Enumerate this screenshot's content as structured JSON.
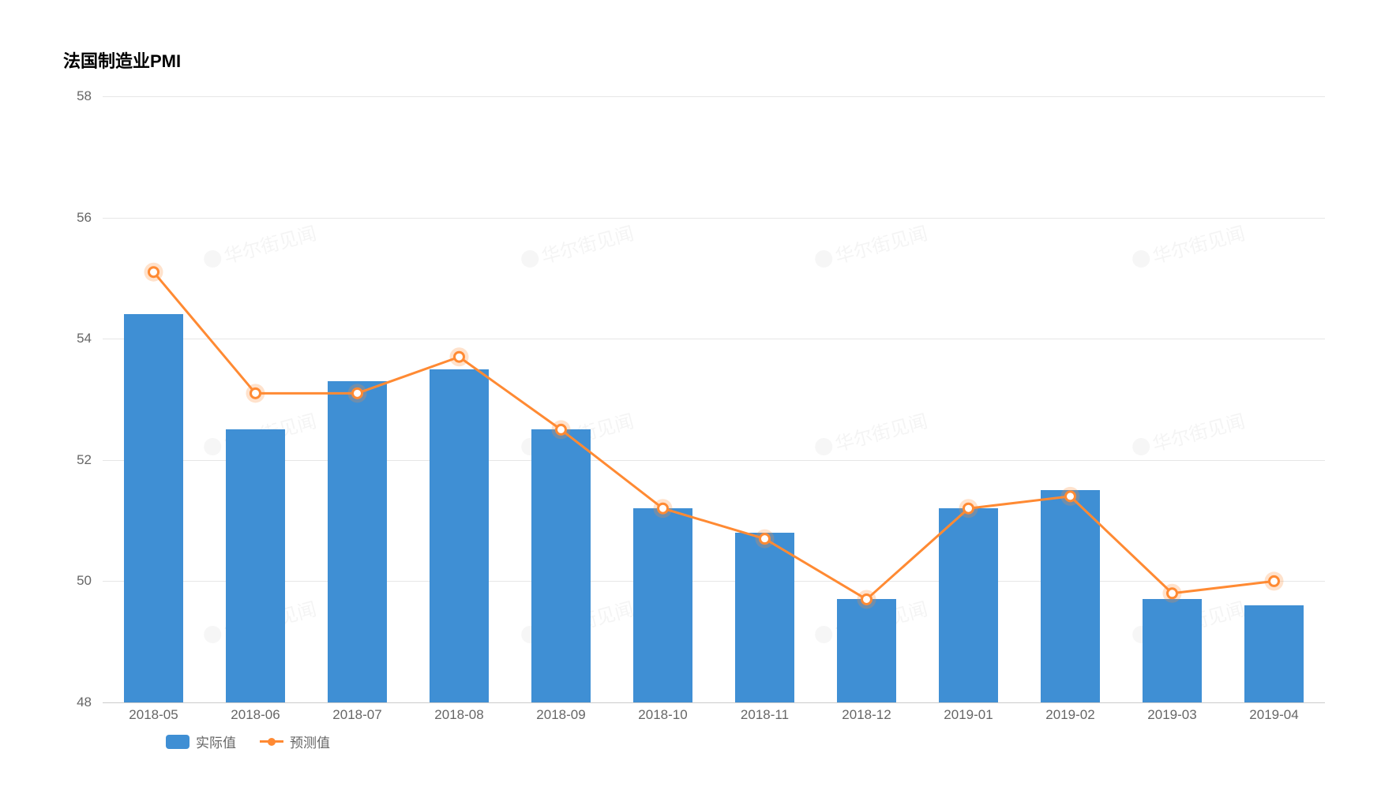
{
  "title": "法国制造业PMI",
  "chart": {
    "type": "bar+line",
    "background_color": "#ffffff",
    "grid_color": "#e6e6e6",
    "axis_label_color": "#666666",
    "axis_label_fontsize": 17,
    "title_fontsize": 22,
    "title_color": "#000000",
    "categories": [
      "2018-05",
      "2018-06",
      "2018-07",
      "2018-08",
      "2018-09",
      "2018-10",
      "2018-11",
      "2018-12",
      "2019-01",
      "2019-02",
      "2019-03",
      "2019-04"
    ],
    "series": {
      "bar": {
        "name": "实际值",
        "color": "#3f8fd4",
        "bar_width_ratio": 0.58,
        "values": [
          54.4,
          52.5,
          53.3,
          53.5,
          52.5,
          51.2,
          50.8,
          49.7,
          51.2,
          51.5,
          49.7,
          49.6
        ]
      },
      "line": {
        "name": "预测值",
        "color": "#ff8a33",
        "line_width": 3,
        "marker_fill": "#ffffff",
        "marker_stroke": "#ff8a33",
        "marker_stroke_width": 3,
        "marker_radius": 6,
        "marker_glow_color": "rgba(255,138,51,0.25)",
        "values": [
          55.1,
          53.1,
          53.1,
          53.7,
          52.5,
          51.2,
          50.7,
          49.7,
          51.2,
          51.4,
          49.8,
          50.0
        ]
      }
    },
    "y_axis": {
      "min": 48,
      "max": 58,
      "ticks": [
        48,
        50,
        52,
        54,
        56,
        58
      ]
    }
  },
  "legend": {
    "bar_label": "实际值",
    "line_label": "预测值",
    "fontsize": 17
  },
  "watermark_text": "华尔街见闻"
}
